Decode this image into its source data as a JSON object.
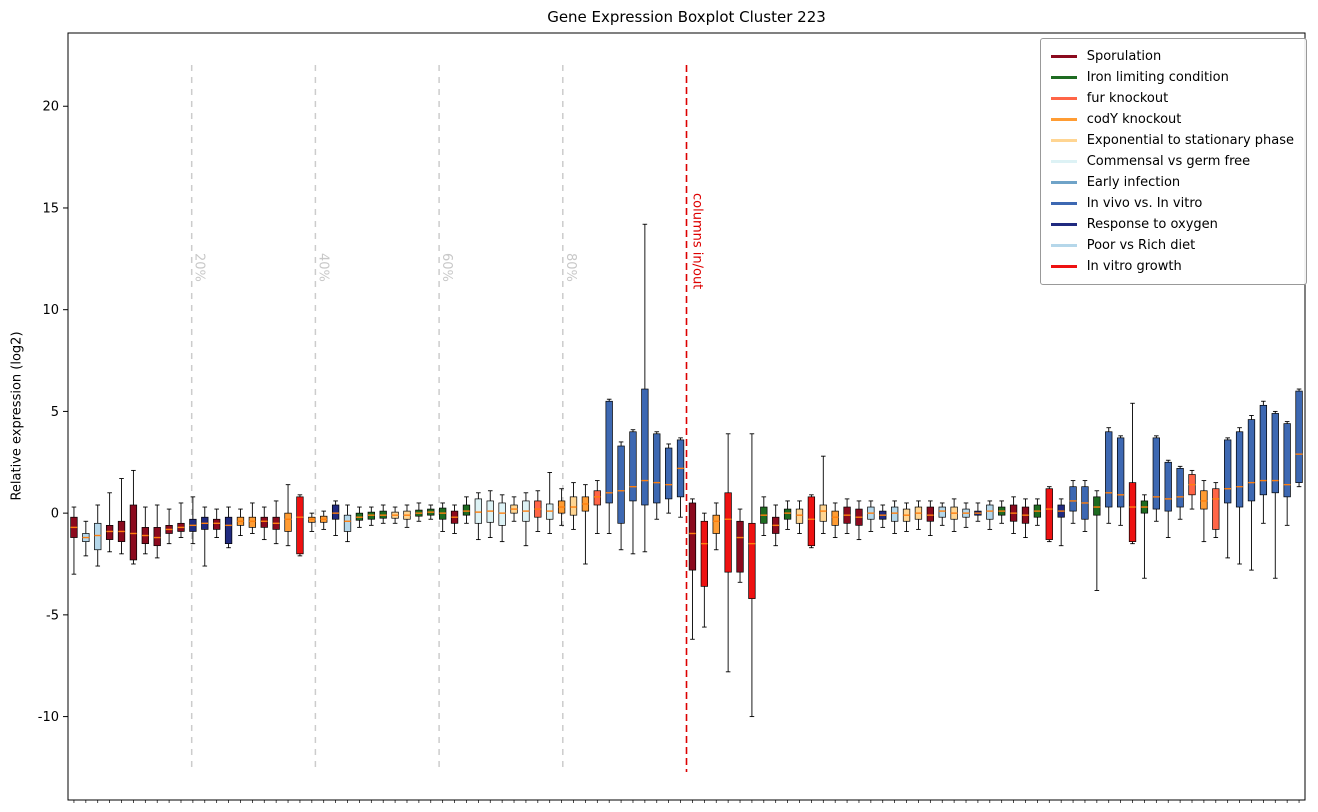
{
  "chart_data": {
    "type": "boxplot",
    "title": "Gene Expression Boxplot Cluster 223",
    "ylabel": "Relative expression (log2)",
    "xlabel": "",
    "ylim": [
      -14.1,
      23.6
    ],
    "yticks": [
      -10,
      -5,
      0,
      5,
      10,
      15,
      20
    ],
    "grid": false,
    "legend_position": "upper right",
    "median_color": "#ff7f0e",
    "box_edge_color": "#000000",
    "whisker_color": "#000000",
    "percent_line_color": "#cccccc",
    "percent_label_color": "#c8c8c8",
    "groups": [
      {
        "name": "Sporulation",
        "color": "#8b0a1e"
      },
      {
        "name": "Iron limiting condition",
        "color": "#1e6b21"
      },
      {
        "name": "fur knockout",
        "color": "#ff6547"
      },
      {
        "name": "codY knockout",
        "color": "#ff9c33"
      },
      {
        "name": "Exponential to stationary phase",
        "color": "#ffd592"
      },
      {
        "name": "Commensal vs germ free",
        "color": "#ddf2f5"
      },
      {
        "name": "Early infection",
        "color": "#6fa3c8"
      },
      {
        "name": "In vivo vs. In vitro",
        "color": "#3d68b2"
      },
      {
        "name": "Response to oxygen",
        "color": "#202a80"
      },
      {
        "name": "Poor vs Rich diet",
        "color": "#b5d7ea"
      },
      {
        "name": "In vitro growth",
        "color": "#ee1111"
      }
    ],
    "percent_lines": [
      {
        "label": "20%",
        "at": 10.4
      },
      {
        "label": "40%",
        "at": 20.8
      },
      {
        "label": "60%",
        "at": 31.2
      },
      {
        "label": "80%",
        "at": 41.6
      }
    ],
    "divider": {
      "label": "columns in/out",
      "at": 52,
      "color": "#dd0000"
    },
    "boxes": [
      {
        "g": 0,
        "lo": -3.0,
        "q1": -1.2,
        "m": -0.7,
        "q3": -0.2,
        "hi": 0.3
      },
      {
        "g": 9,
        "lo": -2.1,
        "q1": -1.4,
        "m": -1.2,
        "q3": -1.0,
        "hi": -0.4
      },
      {
        "g": 9,
        "lo": -2.6,
        "q1": -1.8,
        "m": -1.1,
        "q3": -0.5,
        "hi": 0.4
      },
      {
        "g": 0,
        "lo": -1.9,
        "q1": -1.3,
        "m": -0.9,
        "q3": -0.6,
        "hi": 1.0
      },
      {
        "g": 0,
        "lo": -2.0,
        "q1": -1.4,
        "m": -0.9,
        "q3": -0.4,
        "hi": 1.7
      },
      {
        "g": 0,
        "lo": -2.5,
        "q1": -2.3,
        "m": -1.0,
        "q3": 0.4,
        "hi": 2.1
      },
      {
        "g": 0,
        "lo": -2.0,
        "q1": -1.5,
        "m": -1.1,
        "q3": -0.7,
        "hi": 0.3
      },
      {
        "g": 0,
        "lo": -2.2,
        "q1": -1.6,
        "m": -1.2,
        "q3": -0.7,
        "hi": 0.4
      },
      {
        "g": 0,
        "lo": -1.5,
        "q1": -1.0,
        "m": -0.8,
        "q3": -0.6,
        "hi": 0.2
      },
      {
        "g": 0,
        "lo": -1.2,
        "q1": -0.9,
        "m": -0.7,
        "q3": -0.5,
        "hi": 0.5
      },
      {
        "g": 8,
        "lo": -1.5,
        "q1": -0.9,
        "m": -0.6,
        "q3": -0.3,
        "hi": 0.8
      },
      {
        "g": 8,
        "lo": -2.6,
        "q1": -0.8,
        "m": -0.5,
        "q3": -0.2,
        "hi": 0.3
      },
      {
        "g": 0,
        "lo": -1.2,
        "q1": -0.8,
        "m": -0.5,
        "q3": -0.3,
        "hi": 0.2
      },
      {
        "g": 8,
        "lo": -1.7,
        "q1": -1.5,
        "m": -0.6,
        "q3": -0.2,
        "hi": 0.3
      },
      {
        "g": 3,
        "lo": -1.1,
        "q1": -0.6,
        "m": -0.4,
        "q3": -0.2,
        "hi": 0.2
      },
      {
        "g": 3,
        "lo": -1.0,
        "q1": -0.7,
        "m": -0.4,
        "q3": -0.2,
        "hi": 0.5
      },
      {
        "g": 0,
        "lo": -1.3,
        "q1": -0.7,
        "m": -0.4,
        "q3": -0.2,
        "hi": 0.3
      },
      {
        "g": 0,
        "lo": -1.5,
        "q1": -0.8,
        "m": -0.5,
        "q3": -0.2,
        "hi": 0.6
      },
      {
        "g": 3,
        "lo": -1.6,
        "q1": -0.9,
        "m": -0.3,
        "q3": 0.0,
        "hi": 1.4
      },
      {
        "g": 10,
        "lo": -2.1,
        "q1": -2.0,
        "m": -0.2,
        "q3": 0.8,
        "hi": 0.9
      },
      {
        "g": 3,
        "lo": -0.9,
        "q1": -0.45,
        "m": -0.3,
        "q3": -0.2,
        "hi": 0.0
      },
      {
        "g": 3,
        "lo": -0.8,
        "q1": -0.45,
        "m": -0.3,
        "q3": -0.15,
        "hi": 0.1
      },
      {
        "g": 8,
        "lo": -1.1,
        "q1": -0.3,
        "m": 0.0,
        "q3": 0.4,
        "hi": 0.6
      },
      {
        "g": 9,
        "lo": -1.4,
        "q1": -0.9,
        "m": -0.4,
        "q3": -0.1,
        "hi": 0.4
      },
      {
        "g": 1,
        "lo": -0.7,
        "q1": -0.35,
        "m": -0.2,
        "q3": 0.0,
        "hi": 0.3
      },
      {
        "g": 1,
        "lo": -0.6,
        "q1": -0.3,
        "m": -0.1,
        "q3": 0.05,
        "hi": 0.3
      },
      {
        "g": 1,
        "lo": -0.5,
        "q1": -0.25,
        "m": -0.1,
        "q3": 0.1,
        "hi": 0.4
      },
      {
        "g": 4,
        "lo": -0.5,
        "q1": -0.25,
        "m": -0.1,
        "q3": 0.05,
        "hi": 0.3
      },
      {
        "g": 4,
        "lo": -0.7,
        "q1": -0.3,
        "m": -0.1,
        "q3": 0.1,
        "hi": 0.4
      },
      {
        "g": 1,
        "lo": -0.4,
        "q1": -0.15,
        "m": 0.0,
        "q3": 0.15,
        "hi": 0.5
      },
      {
        "g": 1,
        "lo": -0.3,
        "q1": -0.1,
        "m": 0.05,
        "q3": 0.2,
        "hi": 0.4
      },
      {
        "g": 1,
        "lo": -0.9,
        "q1": -0.3,
        "m": 0.0,
        "q3": 0.25,
        "hi": 0.5
      },
      {
        "g": 0,
        "lo": -1.0,
        "q1": -0.5,
        "m": -0.2,
        "q3": 0.1,
        "hi": 0.4
      },
      {
        "g": 1,
        "lo": -0.5,
        "q1": -0.1,
        "m": 0.1,
        "q3": 0.4,
        "hi": 0.8
      },
      {
        "g": 5,
        "lo": -1.3,
        "q1": -0.5,
        "m": 0.05,
        "q3": 0.7,
        "hi": 1.0
      },
      {
        "g": 5,
        "lo": -1.2,
        "q1": -0.45,
        "m": 0.1,
        "q3": 0.6,
        "hi": 1.1
      },
      {
        "g": 5,
        "lo": -1.4,
        "q1": -0.6,
        "m": 0.0,
        "q3": 0.5,
        "hi": 0.9
      },
      {
        "g": 4,
        "lo": -0.4,
        "q1": 0.0,
        "m": 0.2,
        "q3": 0.4,
        "hi": 0.8
      },
      {
        "g": 5,
        "lo": -1.6,
        "q1": -0.4,
        "m": 0.1,
        "q3": 0.6,
        "hi": 1.0
      },
      {
        "g": 2,
        "lo": -0.9,
        "q1": -0.2,
        "m": 0.2,
        "q3": 0.6,
        "hi": 1.1
      },
      {
        "g": 5,
        "lo": -1.0,
        "q1": -0.3,
        "m": 0.1,
        "q3": 0.45,
        "hi": 2.0
      },
      {
        "g": 3,
        "lo": -0.6,
        "q1": 0.0,
        "m": 0.3,
        "q3": 0.6,
        "hi": 1.2
      },
      {
        "g": 4,
        "lo": -0.8,
        "q1": -0.1,
        "m": 0.3,
        "q3": 0.8,
        "hi": 1.5
      },
      {
        "g": 3,
        "lo": -2.5,
        "q1": 0.1,
        "m": 0.45,
        "q3": 0.8,
        "hi": 1.4
      },
      {
        "g": 2,
        "lo": -1.0,
        "q1": 0.4,
        "m": 0.8,
        "q3": 1.1,
        "hi": 1.6
      },
      {
        "g": 7,
        "lo": -1.0,
        "q1": 0.5,
        "m": 1.0,
        "q3": 5.5,
        "hi": 5.6
      },
      {
        "g": 7,
        "lo": -1.8,
        "q1": -0.5,
        "m": 1.1,
        "q3": 3.3,
        "hi": 3.5
      },
      {
        "g": 7,
        "lo": -2.0,
        "q1": 0.6,
        "m": 1.3,
        "q3": 4.0,
        "hi": 4.1
      },
      {
        "g": 7,
        "lo": -1.9,
        "q1": 0.4,
        "m": 1.6,
        "q3": 6.1,
        "hi": 14.2
      },
      {
        "g": 7,
        "lo": -0.3,
        "q1": 0.5,
        "m": 1.5,
        "q3": 3.9,
        "hi": 4.0
      },
      {
        "g": 7,
        "lo": 0.0,
        "q1": 0.7,
        "m": 1.4,
        "q3": 3.2,
        "hi": 3.4
      },
      {
        "g": 7,
        "lo": -0.2,
        "q1": 0.8,
        "m": 2.2,
        "q3": 3.6,
        "hi": 3.7
      },
      {
        "g": 0,
        "lo": -6.2,
        "q1": -2.8,
        "m": -1.0,
        "q3": 0.5,
        "hi": 0.7
      },
      {
        "g": 10,
        "lo": -5.6,
        "q1": -3.6,
        "m": -1.5,
        "q3": -0.4,
        "hi": 0.0
      },
      {
        "g": 3,
        "lo": -1.8,
        "q1": -1.0,
        "m": -0.4,
        "q3": -0.1,
        "hi": 0.5
      },
      {
        "g": 10,
        "lo": -7.8,
        "q1": -2.9,
        "m": -0.3,
        "q3": 1.0,
        "hi": 3.9
      },
      {
        "g": 0,
        "lo": -3.4,
        "q1": -2.9,
        "m": -1.2,
        "q3": -0.4,
        "hi": 0.2
      },
      {
        "g": 10,
        "lo": -10.0,
        "q1": -4.2,
        "m": -1.5,
        "q3": -0.5,
        "hi": 3.9
      },
      {
        "g": 1,
        "lo": -1.1,
        "q1": -0.5,
        "m": -0.1,
        "q3": 0.3,
        "hi": 0.8
      },
      {
        "g": 0,
        "lo": -1.6,
        "q1": -1.0,
        "m": -0.6,
        "q3": -0.2,
        "hi": 0.4
      },
      {
        "g": 1,
        "lo": -0.8,
        "q1": -0.3,
        "m": 0.0,
        "q3": 0.2,
        "hi": 0.6
      },
      {
        "g": 4,
        "lo": -1.0,
        "q1": -0.5,
        "m": -0.1,
        "q3": 0.2,
        "hi": 0.6
      },
      {
        "g": 10,
        "lo": -1.7,
        "q1": -1.6,
        "m": -0.3,
        "q3": 0.8,
        "hi": 0.9
      },
      {
        "g": 4,
        "lo": -1.0,
        "q1": -0.4,
        "m": 0.1,
        "q3": 0.4,
        "hi": 2.8
      },
      {
        "g": 3,
        "lo": -1.2,
        "q1": -0.6,
        "m": -0.2,
        "q3": 0.1,
        "hi": 0.5
      },
      {
        "g": 0,
        "lo": -1.0,
        "q1": -0.5,
        "m": -0.1,
        "q3": 0.3,
        "hi": 0.7
      },
      {
        "g": 0,
        "lo": -1.3,
        "q1": -0.6,
        "m": -0.2,
        "q3": 0.2,
        "hi": 0.6
      },
      {
        "g": 9,
        "lo": -0.9,
        "q1": -0.3,
        "m": 0.0,
        "q3": 0.3,
        "hi": 0.6
      },
      {
        "g": 8,
        "lo": -0.7,
        "q1": -0.3,
        "m": -0.1,
        "q3": 0.1,
        "hi": 0.4
      },
      {
        "g": 9,
        "lo": -1.0,
        "q1": -0.4,
        "m": 0.0,
        "q3": 0.3,
        "hi": 0.6
      },
      {
        "g": 4,
        "lo": -0.9,
        "q1": -0.4,
        "m": -0.1,
        "q3": 0.2,
        "hi": 0.5
      },
      {
        "g": 4,
        "lo": -0.8,
        "q1": -0.3,
        "m": 0.0,
        "q3": 0.3,
        "hi": 0.6
      },
      {
        "g": 0,
        "lo": -1.1,
        "q1": -0.4,
        "m": -0.1,
        "q3": 0.3,
        "hi": 0.6
      },
      {
        "g": 9,
        "lo": -0.6,
        "q1": -0.2,
        "m": 0.1,
        "q3": 0.3,
        "hi": 0.5
      },
      {
        "g": 4,
        "lo": -0.9,
        "q1": -0.3,
        "m": 0.0,
        "q3": 0.3,
        "hi": 0.7
      },
      {
        "g": 9,
        "lo": -0.7,
        "q1": -0.2,
        "m": 0.0,
        "q3": 0.2,
        "hi": 0.5
      },
      {
        "g": 8,
        "lo": -0.4,
        "q1": -0.1,
        "m": 0.0,
        "q3": 0.1,
        "hi": 0.5
      },
      {
        "g": 9,
        "lo": -0.8,
        "q1": -0.3,
        "m": 0.1,
        "q3": 0.4,
        "hi": 0.6
      },
      {
        "g": 1,
        "lo": -0.5,
        "q1": -0.1,
        "m": 0.1,
        "q3": 0.3,
        "hi": 0.6
      },
      {
        "g": 0,
        "lo": -1.0,
        "q1": -0.4,
        "m": 0.0,
        "q3": 0.4,
        "hi": 0.8
      },
      {
        "g": 0,
        "lo": -1.2,
        "q1": -0.5,
        "m": -0.1,
        "q3": 0.3,
        "hi": 0.7
      },
      {
        "g": 1,
        "lo": -0.6,
        "q1": -0.2,
        "m": 0.1,
        "q3": 0.4,
        "hi": 0.7
      },
      {
        "g": 10,
        "lo": -1.4,
        "q1": -1.3,
        "m": 0.2,
        "q3": 1.2,
        "hi": 1.3
      },
      {
        "g": 8,
        "lo": -1.6,
        "q1": -0.2,
        "m": 0.1,
        "q3": 0.4,
        "hi": 0.7
      },
      {
        "g": 7,
        "lo": -0.5,
        "q1": 0.1,
        "m": 0.6,
        "q3": 1.3,
        "hi": 1.6
      },
      {
        "g": 7,
        "lo": -0.9,
        "q1": -0.3,
        "m": 0.5,
        "q3": 1.3,
        "hi": 1.6
      },
      {
        "g": 1,
        "lo": -3.8,
        "q1": -0.1,
        "m": 0.3,
        "q3": 0.8,
        "hi": 1.1
      },
      {
        "g": 7,
        "lo": -0.5,
        "q1": 0.3,
        "m": 1.0,
        "q3": 4.0,
        "hi": 4.2
      },
      {
        "g": 7,
        "lo": -0.6,
        "q1": 0.3,
        "m": 0.9,
        "q3": 3.7,
        "hi": 3.8
      },
      {
        "g": 10,
        "lo": -1.5,
        "q1": -1.4,
        "m": 0.3,
        "q3": 1.5,
        "hi": 5.4
      },
      {
        "g": 1,
        "lo": -3.2,
        "q1": 0.0,
        "m": 0.3,
        "q3": 0.6,
        "hi": 0.9
      },
      {
        "g": 7,
        "lo": -0.4,
        "q1": 0.2,
        "m": 0.8,
        "q3": 3.7,
        "hi": 3.8
      },
      {
        "g": 7,
        "lo": -1.2,
        "q1": 0.1,
        "m": 0.7,
        "q3": 2.5,
        "hi": 2.6
      },
      {
        "g": 7,
        "lo": -0.3,
        "q1": 0.3,
        "m": 0.8,
        "q3": 2.2,
        "hi": 2.3
      },
      {
        "g": 2,
        "lo": 0.2,
        "q1": 0.9,
        "m": 1.4,
        "q3": 1.9,
        "hi": 2.1
      },
      {
        "g": 3,
        "lo": -1.4,
        "q1": 0.2,
        "m": 0.6,
        "q3": 1.1,
        "hi": 1.6
      },
      {
        "g": 2,
        "lo": -1.2,
        "q1": -0.8,
        "m": 0.7,
        "q3": 1.2,
        "hi": 1.5
      },
      {
        "g": 7,
        "lo": -2.2,
        "q1": 0.5,
        "m": 1.2,
        "q3": 3.6,
        "hi": 3.7
      },
      {
        "g": 7,
        "lo": -2.5,
        "q1": 0.3,
        "m": 1.3,
        "q3": 4.0,
        "hi": 4.2
      },
      {
        "g": 7,
        "lo": -2.8,
        "q1": 0.6,
        "m": 1.5,
        "q3": 4.6,
        "hi": 4.8
      },
      {
        "g": 7,
        "lo": -0.5,
        "q1": 0.9,
        "m": 1.6,
        "q3": 5.3,
        "hi": 5.5
      },
      {
        "g": 7,
        "lo": -3.2,
        "q1": 1.0,
        "m": 1.6,
        "q3": 4.9,
        "hi": 5.0
      },
      {
        "g": 7,
        "lo": -0.6,
        "q1": 0.8,
        "m": 1.4,
        "q3": 4.4,
        "hi": 4.5
      },
      {
        "g": 7,
        "lo": 1.3,
        "q1": 1.5,
        "m": 2.9,
        "q3": 6.0,
        "hi": 6.1
      }
    ]
  }
}
